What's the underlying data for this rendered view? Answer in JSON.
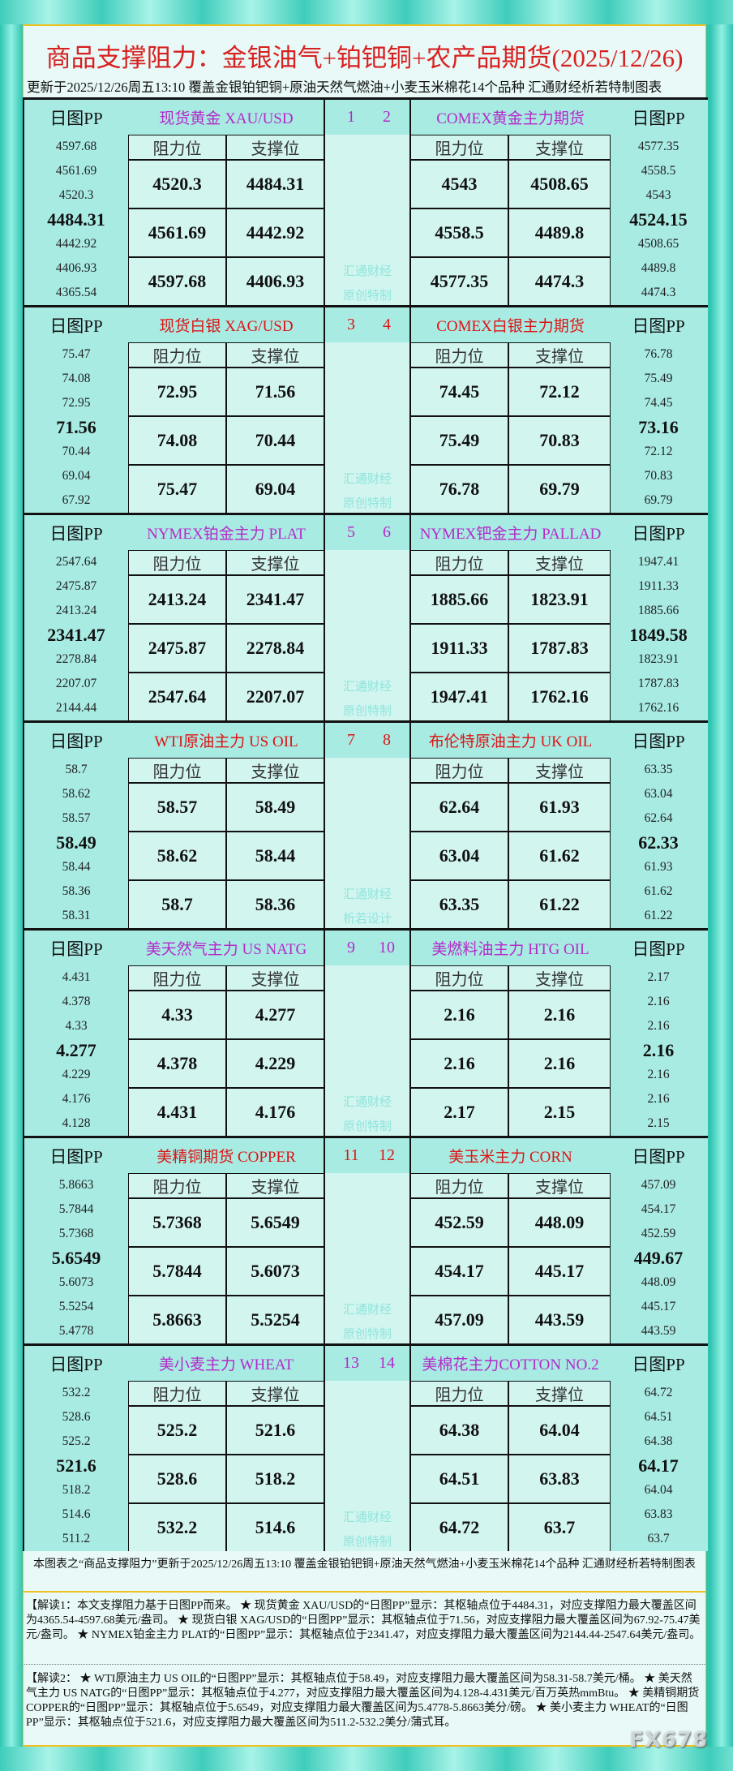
{
  "title": "商品支撑阻力：金银油气+铂钯铜+农产品期货(2025/12/26)",
  "subtitle": "更新于2025/12/26周五13:10 覆盖金银铂钯铜+原油天然气燃油+小麦玉米棉花14个品种 汇通财经析若特制图表",
  "pp_label": "日图PP",
  "col_resist": "阻力位",
  "col_support": "支撑位",
  "colors": {
    "purple": "#b42ac8",
    "red": "#dc1414"
  },
  "blocks": [
    {
      "left": {
        "no": "1",
        "name": "现货黄金 XAU/USD",
        "color": "purple",
        "pp": [
          "4597.68",
          "4561.69",
          "4520.3",
          "4484.31",
          "4442.92",
          "4406.93",
          "4365.54"
        ],
        "rows": [
          [
            "4520.3",
            "4484.31"
          ],
          [
            "4561.69",
            "4442.92"
          ],
          [
            "4597.68",
            "4406.93"
          ]
        ]
      },
      "right": {
        "no": "2",
        "name": "COMEX黄金主力期货",
        "color": "purple",
        "pp": [
          "4577.35",
          "4558.5",
          "4543",
          "4524.15",
          "4508.65",
          "4489.8",
          "4474.3"
        ],
        "rows": [
          [
            "4543",
            "4508.65"
          ],
          [
            "4558.5",
            "4489.8"
          ],
          [
            "4577.35",
            "4474.3"
          ]
        ]
      },
      "watermark": [
        "汇通财经",
        "原创特制"
      ]
    },
    {
      "left": {
        "no": "3",
        "name": "现货白银 XAG/USD",
        "color": "red",
        "pp": [
          "75.47",
          "74.08",
          "72.95",
          "71.56",
          "70.44",
          "69.04",
          "67.92"
        ],
        "rows": [
          [
            "72.95",
            "71.56"
          ],
          [
            "74.08",
            "70.44"
          ],
          [
            "75.47",
            "69.04"
          ]
        ]
      },
      "right": {
        "no": "4",
        "name": "COMEX白银主力期货",
        "color": "red",
        "pp": [
          "76.78",
          "75.49",
          "74.45",
          "73.16",
          "72.12",
          "70.83",
          "69.79"
        ],
        "rows": [
          [
            "74.45",
            "72.12"
          ],
          [
            "75.49",
            "70.83"
          ],
          [
            "76.78",
            "69.79"
          ]
        ]
      },
      "watermark": [
        "汇通财经",
        "原创特制"
      ]
    },
    {
      "left": {
        "no": "5",
        "name": "NYMEX铂金主力 PLAT",
        "color": "purple",
        "pp": [
          "2547.64",
          "2475.87",
          "2413.24",
          "2341.47",
          "2278.84",
          "2207.07",
          "2144.44"
        ],
        "rows": [
          [
            "2413.24",
            "2341.47"
          ],
          [
            "2475.87",
            "2278.84"
          ],
          [
            "2547.64",
            "2207.07"
          ]
        ]
      },
      "right": {
        "no": "6",
        "name": "NYMEX钯金主力 PALLAD",
        "color": "purple",
        "pp": [
          "1947.41",
          "1911.33",
          "1885.66",
          "1849.58",
          "1823.91",
          "1787.83",
          "1762.16"
        ],
        "rows": [
          [
            "1885.66",
            "1823.91"
          ],
          [
            "1911.33",
            "1787.83"
          ],
          [
            "1947.41",
            "1762.16"
          ]
        ]
      },
      "watermark": [
        "汇通财经",
        "原创特制"
      ]
    },
    {
      "left": {
        "no": "7",
        "name": "WTI原油主力 US OIL",
        "color": "red",
        "pp": [
          "58.7",
          "58.62",
          "58.57",
          "58.49",
          "58.44",
          "58.36",
          "58.31"
        ],
        "rows": [
          [
            "58.57",
            "58.49"
          ],
          [
            "58.62",
            "58.44"
          ],
          [
            "58.7",
            "58.36"
          ]
        ]
      },
      "right": {
        "no": "8",
        "name": "布伦特原油主力 UK OIL",
        "color": "red",
        "pp": [
          "63.35",
          "63.04",
          "62.64",
          "62.33",
          "61.93",
          "61.62",
          "61.22"
        ],
        "rows": [
          [
            "62.64",
            "61.93"
          ],
          [
            "63.04",
            "61.62"
          ],
          [
            "63.35",
            "61.22"
          ]
        ]
      },
      "watermark": [
        "汇通财经",
        "析若设计"
      ]
    },
    {
      "left": {
        "no": "9",
        "name": "美天然气主力 US NATG",
        "color": "purple",
        "pp": [
          "4.431",
          "4.378",
          "4.33",
          "4.277",
          "4.229",
          "4.176",
          "4.128"
        ],
        "rows": [
          [
            "4.33",
            "4.277"
          ],
          [
            "4.378",
            "4.229"
          ],
          [
            "4.431",
            "4.176"
          ]
        ]
      },
      "right": {
        "no": "10",
        "name": "美燃料油主力 HTG OIL",
        "color": "purple",
        "pp": [
          "2.17",
          "2.16",
          "2.16",
          "2.16",
          "2.16",
          "2.16",
          "2.15"
        ],
        "rows": [
          [
            "2.16",
            "2.16"
          ],
          [
            "2.16",
            "2.16"
          ],
          [
            "2.17",
            "2.15"
          ]
        ]
      },
      "watermark": [
        "汇通财经",
        "原创特制"
      ]
    },
    {
      "left": {
        "no": "11",
        "name": "美精铜期货 COPPER",
        "color": "red",
        "pp": [
          "5.8663",
          "5.7844",
          "5.7368",
          "5.6549",
          "5.6073",
          "5.5254",
          "5.4778"
        ],
        "rows": [
          [
            "5.7368",
            "5.6549"
          ],
          [
            "5.7844",
            "5.6073"
          ],
          [
            "5.8663",
            "5.5254"
          ]
        ]
      },
      "right": {
        "no": "12",
        "name": "美玉米主力 CORN",
        "color": "red",
        "pp": [
          "457.09",
          "454.17",
          "452.59",
          "449.67",
          "448.09",
          "445.17",
          "443.59"
        ],
        "rows": [
          [
            "452.59",
            "448.09"
          ],
          [
            "454.17",
            "445.17"
          ],
          [
            "457.09",
            "443.59"
          ]
        ]
      },
      "watermark": [
        "汇通财经",
        "原创特制"
      ]
    },
    {
      "left": {
        "no": "13",
        "name": "美小麦主力 WHEAT",
        "color": "purple",
        "pp": [
          "532.2",
          "528.6",
          "525.2",
          "521.6",
          "518.2",
          "514.6",
          "511.2"
        ],
        "rows": [
          [
            "525.2",
            "521.6"
          ],
          [
            "528.6",
            "518.2"
          ],
          [
            "532.2",
            "514.6"
          ]
        ]
      },
      "right": {
        "no": "14",
        "name": "美棉花主力COTTON NO.2",
        "color": "purple",
        "pp": [
          "64.72",
          "64.51",
          "64.38",
          "64.17",
          "64.04",
          "63.83",
          "63.7"
        ],
        "rows": [
          [
            "64.38",
            "64.04"
          ],
          [
            "64.51",
            "63.83"
          ],
          [
            "64.72",
            "63.7"
          ]
        ]
      },
      "watermark": [
        "汇通财经",
        "原创特制"
      ]
    }
  ],
  "footer": {
    "note": "本图表之“商品支撑阻力”更新于2025/12/26周五13:10 覆盖金银铂钯铜+原油天然气燃油+小麦玉米棉花14个品种 汇通财经析若特制图表",
    "jiedu1": "【解读1：本文支撑阻力基于日图PP而来。 ★ 现货黄金 XAU/USD的“日图PP”显示：其枢轴点位于4484.31，对应支撑阻力最大覆盖区间为4365.54-4597.68美元/盎司。 ★ 现货白银 XAG/USD的“日图PP”显示：其枢轴点位于71.56，对应支撑阻力最大覆盖区间为67.92-75.47美元/盎司。 ★ NYMEX铂金主力 PLAT的“日图PP”显示：其枢轴点位于2341.47，对应支撑阻力最大覆盖区间为2144.44-2547.64美元/盎司。",
    "jiedu2": "【解读2： ★ WTI原油主力 US OIL的“日图PP”显示：其枢轴点位于58.49，对应支撑阻力最大覆盖区间为58.31-58.7美元/桶。 ★ 美天然气主力 US NATG的“日图PP”显示：其枢轴点位于4.277，对应支撑阻力最大覆盖区间为4.128-4.431美元/百万英热mmBtu。 ★ 美精铜期货 COPPER的“日图PP”显示：其枢轴点位于5.6549，对应支撑阻力最大覆盖区间为5.4778-5.8663美分/磅。 ★ 美小麦主力 WHEAT的“日图PP”显示：其枢轴点位于521.6，对应支撑阻力最大覆盖区间为511.2-532.2美分/蒲式耳。"
  },
  "watermark": "FX678"
}
